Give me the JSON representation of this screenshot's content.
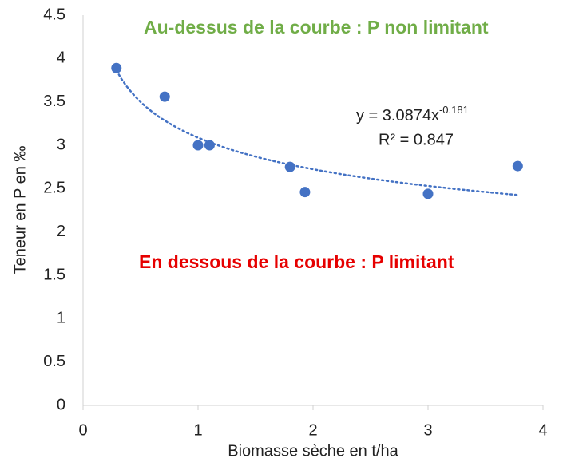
{
  "chart_data": {
    "type": "scatter",
    "x_label": "Biomasse sèche en t/ha",
    "y_label": "Teneur en P en ‰",
    "series": [
      {
        "color": "#4472c4",
        "x": [
          0.29,
          0.71,
          1.0,
          1.1,
          1.8,
          1.93,
          3.0,
          3.78
        ],
        "values": [
          3.89,
          3.56,
          3.0,
          3.0,
          2.75,
          2.46,
          2.44,
          2.76
        ]
      }
    ],
    "trendline": {
      "type": "power",
      "color": "#4472c4",
      "equation": "y = 3.0874x",
      "exponent": "-0.181",
      "r_squared": "R² = 0.847"
    },
    "annotations": [
      {
        "text": "Au-dessus de la courbe : P non limitant",
        "color": "#70ad47"
      },
      {
        "text": "En dessous de la courbe : P limitant",
        "color": "#e60000"
      }
    ],
    "xlim": [
      0,
      4
    ],
    "xticks": [
      0,
      1,
      2,
      3,
      4
    ],
    "ylim": [
      0,
      4.5
    ],
    "yticks": [
      0,
      0.5,
      1,
      1.5,
      2,
      2.5,
      3,
      3.5,
      4,
      4.5
    ],
    "grid": false
  }
}
